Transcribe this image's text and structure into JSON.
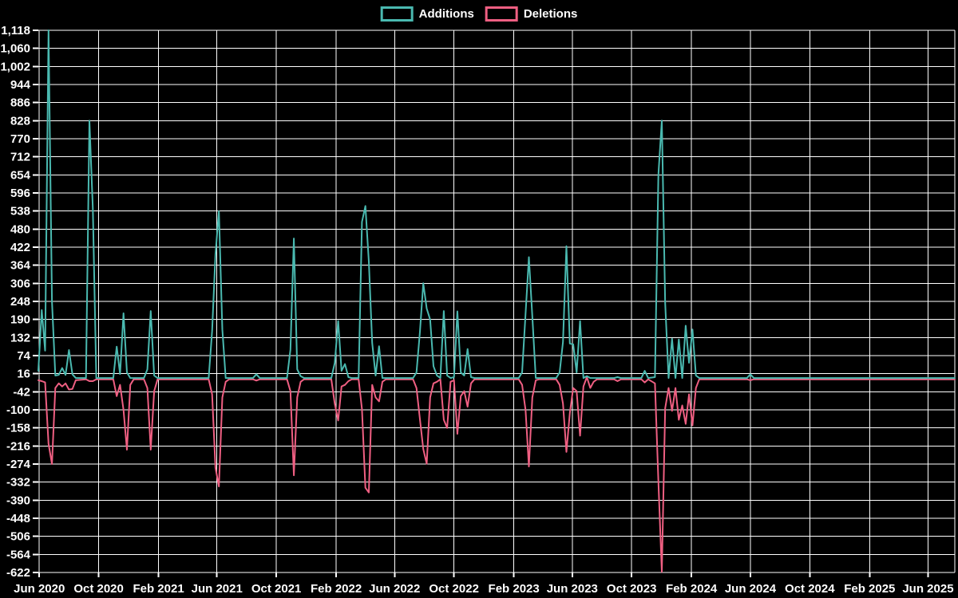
{
  "legend": {
    "items": [
      {
        "label": "Additions",
        "color": "#4ab9b0"
      },
      {
        "label": "Deletions",
        "color": "#ef5f82"
      }
    ]
  },
  "colors": {
    "background": "#000000",
    "grid": "#ffffff",
    "tick_text": "#ffffff",
    "additions": "#4ab9b0",
    "deletions": "#ef5f82"
  },
  "chart_data": {
    "type": "line",
    "title": "",
    "xlabel": "",
    "ylabel": "",
    "grid": "on",
    "legend_position": "top-center",
    "y_axis": {
      "min": -622,
      "max": 1118,
      "step": 58,
      "ticks": [
        1118,
        1060,
        1002,
        944,
        886,
        828,
        770,
        712,
        654,
        596,
        538,
        480,
        422,
        364,
        306,
        248,
        190,
        132,
        74,
        16,
        -42,
        -100,
        -158,
        -216,
        -274,
        -332,
        -390,
        -448,
        -506,
        -564,
        -622
      ]
    },
    "x_axis": {
      "start": "2020-05-30",
      "end": "2025-07-26",
      "ticks": [
        {
          "label": "Jun 2020",
          "date": "2020-06-01"
        },
        {
          "label": "Oct 2020",
          "date": "2020-10-01"
        },
        {
          "label": "Feb 2021",
          "date": "2021-02-01"
        },
        {
          "label": "Jun 2021",
          "date": "2021-06-01"
        },
        {
          "label": "Oct 2021",
          "date": "2021-10-01"
        },
        {
          "label": "Feb 2022",
          "date": "2022-02-01"
        },
        {
          "label": "Jun 2022",
          "date": "2022-06-01"
        },
        {
          "label": "Oct 2022",
          "date": "2022-10-01"
        },
        {
          "label": "Feb 2023",
          "date": "2023-02-01"
        },
        {
          "label": "Jun 2023",
          "date": "2023-06-01"
        },
        {
          "label": "Oct 2023",
          "date": "2023-10-01"
        },
        {
          "label": "Feb 2024",
          "date": "2024-02-01"
        },
        {
          "label": "Jun 2024",
          "date": "2024-06-01"
        },
        {
          "label": "Oct 2024",
          "date": "2024-10-01"
        },
        {
          "label": "Feb 2025",
          "date": "2025-02-01"
        },
        {
          "label": "Jun 2025",
          "date": "2025-06-01"
        }
      ]
    },
    "x": [
      "2020-05-30",
      "2020-06-06",
      "2020-06-13",
      "2020-06-20",
      "2020-06-27",
      "2020-07-04",
      "2020-07-11",
      "2020-07-18",
      "2020-07-25",
      "2020-08-01",
      "2020-08-08",
      "2020-08-15",
      "2020-09-05",
      "2020-09-12",
      "2020-09-19",
      "2020-09-26",
      "2020-10-31",
      "2020-11-07",
      "2020-11-14",
      "2020-11-21",
      "2020-11-28",
      "2020-12-05",
      "2020-12-12",
      "2021-01-02",
      "2021-01-09",
      "2021-01-16",
      "2021-01-23",
      "2021-01-30",
      "2021-05-15",
      "2021-05-22",
      "2021-05-29",
      "2021-06-05",
      "2021-06-12",
      "2021-06-19",
      "2021-06-26",
      "2021-08-14",
      "2021-08-21",
      "2021-08-28",
      "2021-10-23",
      "2021-10-30",
      "2021-11-06",
      "2021-11-13",
      "2021-11-20",
      "2021-11-27",
      "2022-01-22",
      "2022-01-29",
      "2022-02-05",
      "2022-02-12",
      "2022-02-19",
      "2022-02-26",
      "2022-03-05",
      "2022-03-19",
      "2022-03-26",
      "2022-04-02",
      "2022-04-09",
      "2022-04-16",
      "2022-04-23",
      "2022-04-30",
      "2022-05-07",
      "2022-05-14",
      "2022-07-09",
      "2022-07-16",
      "2022-07-23",
      "2022-07-30",
      "2022-08-06",
      "2022-08-13",
      "2022-08-20",
      "2022-08-27",
      "2022-09-03",
      "2022-09-10",
      "2022-09-17",
      "2022-09-24",
      "2022-10-01",
      "2022-10-08",
      "2022-10-15",
      "2022-10-22",
      "2022-10-29",
      "2022-11-05",
      "2022-11-12",
      "2023-02-11",
      "2023-02-18",
      "2023-02-25",
      "2023-03-04",
      "2023-03-11",
      "2023-03-18",
      "2023-03-25",
      "2023-04-29",
      "2023-05-06",
      "2023-05-13",
      "2023-05-20",
      "2023-05-27",
      "2023-06-03",
      "2023-06-10",
      "2023-06-17",
      "2023-06-24",
      "2023-07-01",
      "2023-07-08",
      "2023-07-15",
      "2023-07-22",
      "2023-08-26",
      "2023-09-02",
      "2023-09-09",
      "2023-10-21",
      "2023-10-28",
      "2023-11-04",
      "2023-11-18",
      "2023-11-25",
      "2023-12-02",
      "2023-12-09",
      "2023-12-16",
      "2023-12-23",
      "2023-12-30",
      "2024-01-06",
      "2024-01-13",
      "2024-01-20",
      "2024-01-27",
      "2024-02-03",
      "2024-02-10",
      "2024-02-17",
      "2024-05-25",
      "2024-06-01",
      "2024-06-08",
      "2025-07-26"
    ],
    "series": [
      {
        "name": "Additions",
        "color": "#4ab9b0",
        "values": [
          25,
          220,
          90,
          1118,
          248,
          10,
          12,
          34,
          12,
          92,
          14,
          2,
          2,
          828,
          545,
          2,
          2,
          103,
          15,
          210,
          20,
          2,
          2,
          2,
          30,
          217,
          10,
          2,
          2,
          153,
          400,
          538,
          158,
          2,
          2,
          2,
          14,
          2,
          2,
          93,
          450,
          30,
          8,
          2,
          2,
          50,
          185,
          25,
          47,
          5,
          2,
          2,
          503,
          554,
          376,
          115,
          10,
          104,
          2,
          2,
          2,
          20,
          150,
          306,
          225,
          190,
          40,
          10,
          2,
          217,
          10,
          2,
          5,
          216,
          20,
          10,
          95,
          5,
          2,
          2,
          20,
          207,
          390,
          200,
          2,
          2,
          2,
          20,
          118,
          425,
          113,
          110,
          20,
          185,
          2,
          8,
          2,
          2,
          2,
          2,
          5,
          2,
          2,
          25,
          2,
          5,
          654,
          828,
          243,
          2,
          128,
          2,
          126,
          2,
          170,
          51,
          158,
          10,
          2,
          2,
          14,
          2,
          2
        ]
      },
      {
        "name": "Deletions",
        "color": "#ef5f82",
        "values": [
          -5,
          -8,
          -12,
          -209,
          -274,
          -30,
          -15,
          -25,
          -15,
          -35,
          -33,
          -5,
          -2,
          -8,
          -8,
          -2,
          -2,
          -56,
          -20,
          -100,
          -228,
          -20,
          -2,
          -2,
          -30,
          -228,
          -40,
          -2,
          -2,
          -50,
          -286,
          -346,
          -60,
          -10,
          -2,
          -2,
          -6,
          -2,
          -2,
          -40,
          -310,
          -60,
          -10,
          -2,
          -2,
          -80,
          -134,
          -25,
          -20,
          -8,
          -2,
          -2,
          -98,
          -350,
          -365,
          -20,
          -60,
          -73,
          -10,
          -2,
          -2,
          -30,
          -130,
          -226,
          -273,
          -60,
          -15,
          -10,
          -2,
          -132,
          -158,
          -10,
          -5,
          -177,
          -56,
          -40,
          -90,
          -15,
          -2,
          -2,
          -20,
          -100,
          -282,
          -60,
          -5,
          -2,
          -2,
          -20,
          -80,
          -235,
          -110,
          -30,
          -40,
          -183,
          -25,
          5,
          -30,
          -10,
          -2,
          -2,
          -8,
          -2,
          -2,
          -12,
          -2,
          -15,
          -330,
          -620,
          -95,
          -30,
          -103,
          -30,
          -132,
          -86,
          -145,
          -50,
          -150,
          -30,
          -2,
          -2,
          -5,
          -2,
          -2
        ]
      }
    ]
  }
}
